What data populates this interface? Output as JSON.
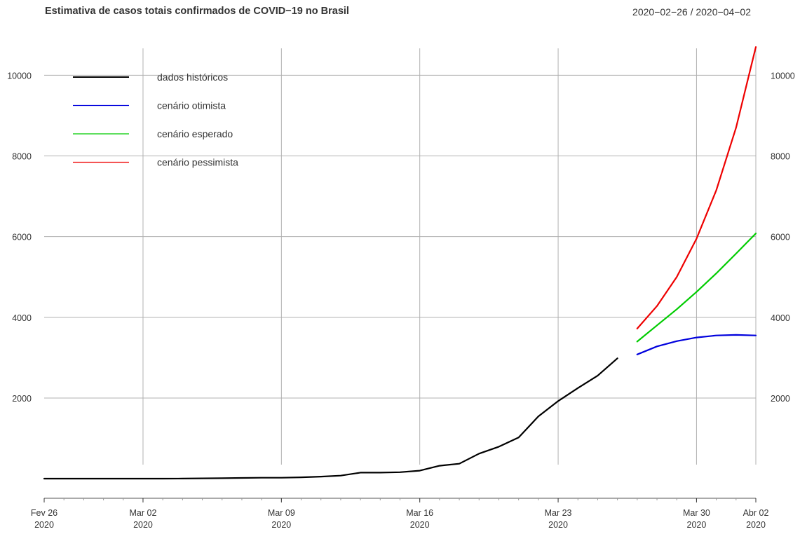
{
  "header": {
    "title": "Estimativa de casos totais confirmados de COVID−19 no Brasil",
    "date_range": "2020−02−26 / 2020−04−02"
  },
  "chart_data": {
    "type": "line",
    "title": "Estimativa de casos totais confirmados de COVID−19 no Brasil",
    "subtitle": "2020−02−26 / 2020−04−02",
    "xlabel": "",
    "ylabel": "",
    "xlim": [
      "2020-02-26",
      "2020-04-02"
    ],
    "ylim": [
      0,
      10700
    ],
    "grid": true,
    "legend_position": "top-left",
    "y_ticks": [
      2000,
      4000,
      6000,
      8000,
      10000
    ],
    "y_tick_labels": [
      "2000",
      "4000",
      "6000",
      "8000",
      "10000"
    ],
    "x_ticks": [
      {
        "date": "2020-02-26",
        "line1": "Fev 26",
        "line2": "2020",
        "grid": false
      },
      {
        "date": "2020-03-02",
        "line1": "Mar 02",
        "line2": "2020",
        "grid": true
      },
      {
        "date": "2020-03-09",
        "line1": "Mar 09",
        "line2": "2020",
        "grid": true
      },
      {
        "date": "2020-03-16",
        "line1": "Mar 16",
        "line2": "2020",
        "grid": true
      },
      {
        "date": "2020-03-23",
        "line1": "Mar 23",
        "line2": "2020",
        "grid": true
      },
      {
        "date": "2020-03-30",
        "line1": "Mar 30",
        "line2": "2020",
        "grid": true
      },
      {
        "date": "2020-04-02",
        "line1": "Abr 02",
        "line2": "2020",
        "grid": true
      }
    ],
    "series": [
      {
        "name": "dados históricos",
        "color": "#000000",
        "x": [
          "2020-02-26",
          "2020-02-27",
          "2020-02-28",
          "2020-02-29",
          "2020-03-01",
          "2020-03-02",
          "2020-03-03",
          "2020-03-04",
          "2020-03-05",
          "2020-03-06",
          "2020-03-07",
          "2020-03-08",
          "2020-03-09",
          "2020-03-10",
          "2020-03-11",
          "2020-03-12",
          "2020-03-13",
          "2020-03-14",
          "2020-03-15",
          "2020-03-16",
          "2020-03-17",
          "2020-03-18",
          "2020-03-19",
          "2020-03-20",
          "2020-03-21",
          "2020-03-22",
          "2020-03-23",
          "2020-03-24",
          "2020-03-25",
          "2020-03-26"
        ],
        "values": [
          1,
          1,
          1,
          2,
          2,
          2,
          2,
          3,
          8,
          13,
          19,
          25,
          25,
          34,
          52,
          77,
          151,
          151,
          162,
          200,
          321,
          372,
          621,
          793,
          1021,
          1546,
          1924,
          2247,
          2554,
          2985
        ]
      },
      {
        "name": "cenário otimista",
        "color": "#0000dd",
        "x": [
          "2020-03-27",
          "2020-03-28",
          "2020-03-29",
          "2020-03-30",
          "2020-03-31",
          "2020-04-01",
          "2020-04-02"
        ],
        "values": [
          3080,
          3280,
          3410,
          3500,
          3550,
          3565,
          3550
        ]
      },
      {
        "name": "cenário esperado",
        "color": "#00cc00",
        "x": [
          "2020-03-27",
          "2020-03-28",
          "2020-03-29",
          "2020-03-30",
          "2020-03-31",
          "2020-04-01",
          "2020-04-02"
        ],
        "values": [
          3400,
          3800,
          4200,
          4630,
          5090,
          5580,
          6080
        ]
      },
      {
        "name": "cenário pessimista",
        "color": "#ee0000",
        "x": [
          "2020-03-27",
          "2020-03-28",
          "2020-03-29",
          "2020-03-30",
          "2020-03-31",
          "2020-04-01",
          "2020-04-02"
        ],
        "values": [
          3720,
          4280,
          5000,
          5950,
          7150,
          8700,
          10700
        ]
      }
    ]
  }
}
